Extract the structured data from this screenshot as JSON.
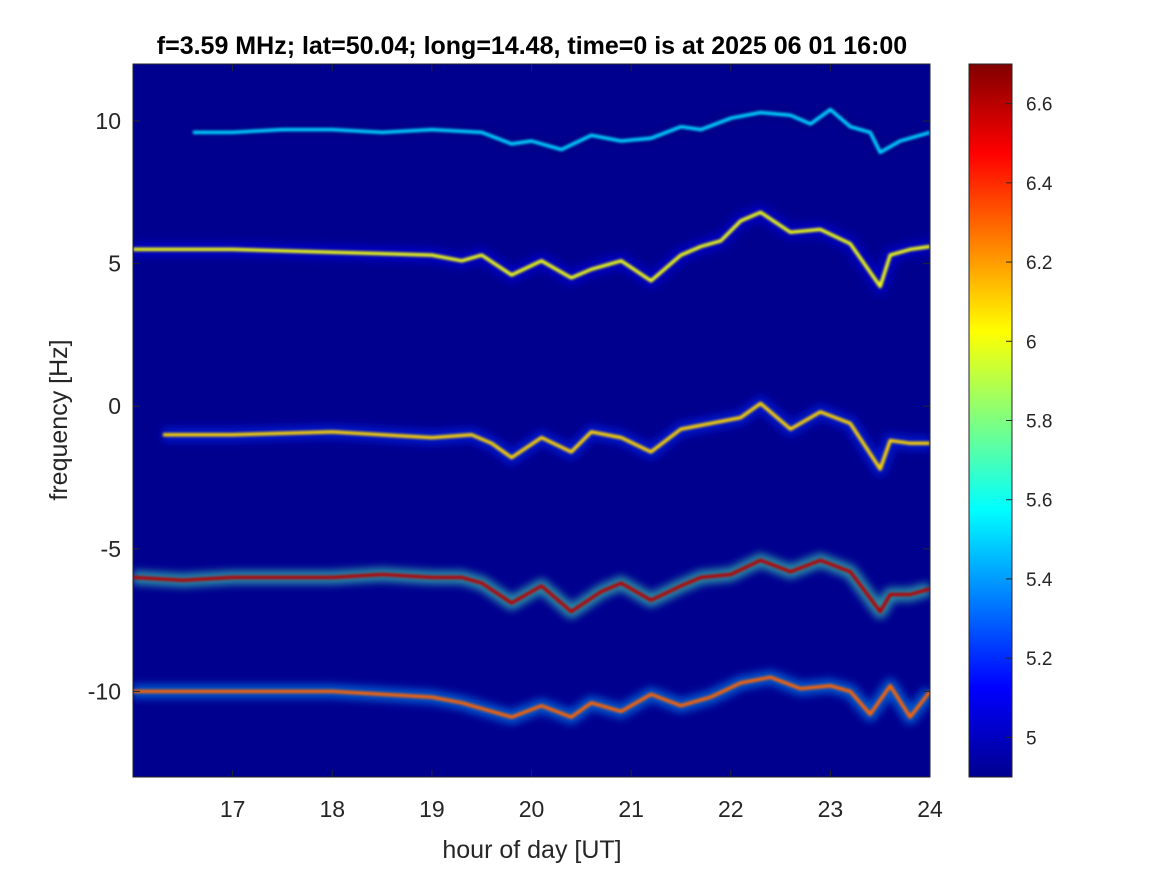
{
  "chart_data": {
    "type": "heatmap",
    "title": "f=3.59 MHz;  lat=50.04; long=14.48, time=0 is at 2025 06 01 16:00",
    "xlabel": "hour of day [UT]",
    "ylabel": "frequency [Hz]",
    "xlim": [
      16,
      24
    ],
    "ylim": [
      -13,
      12
    ],
    "x_ticks": [
      17,
      18,
      19,
      20,
      21,
      22,
      23,
      24
    ],
    "y_ticks": [
      10,
      5,
      0,
      -5,
      -10
    ],
    "colorbar": {
      "range": [
        4.9,
        6.7
      ],
      "ticks": [
        6.6,
        6.4,
        6.2,
        6.0,
        5.8,
        5.6,
        5.4,
        5.2,
        5.0
      ],
      "tick_labels": [
        "6.6",
        "6.4",
        "6.2",
        "6",
        "5.8",
        "5.6",
        "5.4",
        "5.2",
        "5"
      ],
      "colormap": "jet"
    },
    "background_value": 4.95,
    "grid": false,
    "traces": [
      {
        "description": "weak echo trace near +10 Hz",
        "hours": [
          16.6,
          17.0,
          17.5,
          18.0,
          18.5,
          19.0,
          19.5,
          19.8,
          20.0,
          20.3,
          20.6,
          20.9,
          21.2,
          21.5,
          21.7,
          22.0,
          22.3,
          22.6,
          22.8,
          23.0,
          23.2,
          23.4,
          23.5,
          23.7,
          24.0
        ],
        "frequency": [
          9.6,
          9.6,
          9.7,
          9.7,
          9.6,
          9.7,
          9.6,
          9.2,
          9.3,
          9.0,
          9.5,
          9.3,
          9.4,
          9.8,
          9.7,
          10.1,
          10.3,
          10.2,
          9.9,
          10.4,
          9.8,
          9.6,
          8.9,
          9.3,
          9.6
        ],
        "level": 5.5
      },
      {
        "description": "constant carrier line near +5.5 Hz",
        "hours": [
          16.0,
          24.0
        ],
        "frequency": [
          5.5,
          5.5
        ],
        "level": 6.2
      },
      {
        "description": "echo trace around +5 Hz",
        "hours": [
          16.0,
          17.0,
          18.0,
          19.0,
          19.3,
          19.5,
          19.8,
          20.1,
          20.4,
          20.6,
          20.9,
          21.2,
          21.5,
          21.7,
          21.9,
          22.1,
          22.3,
          22.6,
          22.9,
          23.2,
          23.5,
          23.6,
          23.8,
          24.0
        ],
        "frequency": [
          5.5,
          5.5,
          5.4,
          5.3,
          5.1,
          5.3,
          4.6,
          5.1,
          4.5,
          4.8,
          5.1,
          4.4,
          5.3,
          5.6,
          5.8,
          6.5,
          6.8,
          6.1,
          6.2,
          5.7,
          4.2,
          5.3,
          5.5,
          5.6
        ],
        "level": 6.0
      },
      {
        "description": "echo trace around -1 Hz",
        "hours": [
          16.3,
          17.0,
          18.0,
          19.0,
          19.4,
          19.6,
          19.8,
          20.1,
          20.4,
          20.6,
          20.9,
          21.2,
          21.5,
          21.8,
          22.1,
          22.3,
          22.6,
          22.9,
          23.2,
          23.5,
          23.6,
          23.8,
          24.0
        ],
        "frequency": [
          -1.0,
          -1.0,
          -0.9,
          -1.1,
          -1.0,
          -1.3,
          -1.8,
          -1.1,
          -1.6,
          -0.9,
          -1.1,
          -1.6,
          -0.8,
          -0.6,
          -0.4,
          0.1,
          -0.8,
          -0.2,
          -0.6,
          -2.2,
          -1.2,
          -1.3,
          -1.3
        ],
        "level": 6.1
      },
      {
        "description": "strong echo trace around -6 Hz",
        "hours": [
          16.0,
          16.5,
          17.0,
          17.5,
          18.0,
          18.5,
          19.0,
          19.3,
          19.5,
          19.8,
          20.1,
          20.4,
          20.7,
          20.9,
          21.2,
          21.5,
          21.7,
          22.0,
          22.3,
          22.6,
          22.9,
          23.2,
          23.5,
          23.6,
          23.8,
          24.0
        ],
        "frequency": [
          -6.0,
          -6.1,
          -6.0,
          -6.0,
          -6.0,
          -5.9,
          -6.0,
          -6.0,
          -6.2,
          -6.9,
          -6.3,
          -7.2,
          -6.5,
          -6.2,
          -6.8,
          -6.3,
          -6.0,
          -5.9,
          -5.4,
          -5.8,
          -5.4,
          -5.8,
          -7.2,
          -6.6,
          -6.6,
          -6.4
        ],
        "level": 6.6
      },
      {
        "description": "echo trace around -10 Hz",
        "hours": [
          16.0,
          17.0,
          18.0,
          19.0,
          19.3,
          19.5,
          19.8,
          20.1,
          20.4,
          20.6,
          20.9,
          21.2,
          21.5,
          21.8,
          22.1,
          22.4,
          22.7,
          23.0,
          23.2,
          23.4,
          23.6,
          23.8,
          24.0
        ],
        "frequency": [
          -10.0,
          -10.0,
          -10.0,
          -10.2,
          -10.4,
          -10.6,
          -10.9,
          -10.5,
          -10.9,
          -10.4,
          -10.7,
          -10.1,
          -10.5,
          -10.2,
          -9.7,
          -9.5,
          -9.9,
          -9.8,
          -10.0,
          -10.8,
          -9.8,
          -10.9,
          -10.0
        ],
        "level": 6.3
      }
    ]
  }
}
